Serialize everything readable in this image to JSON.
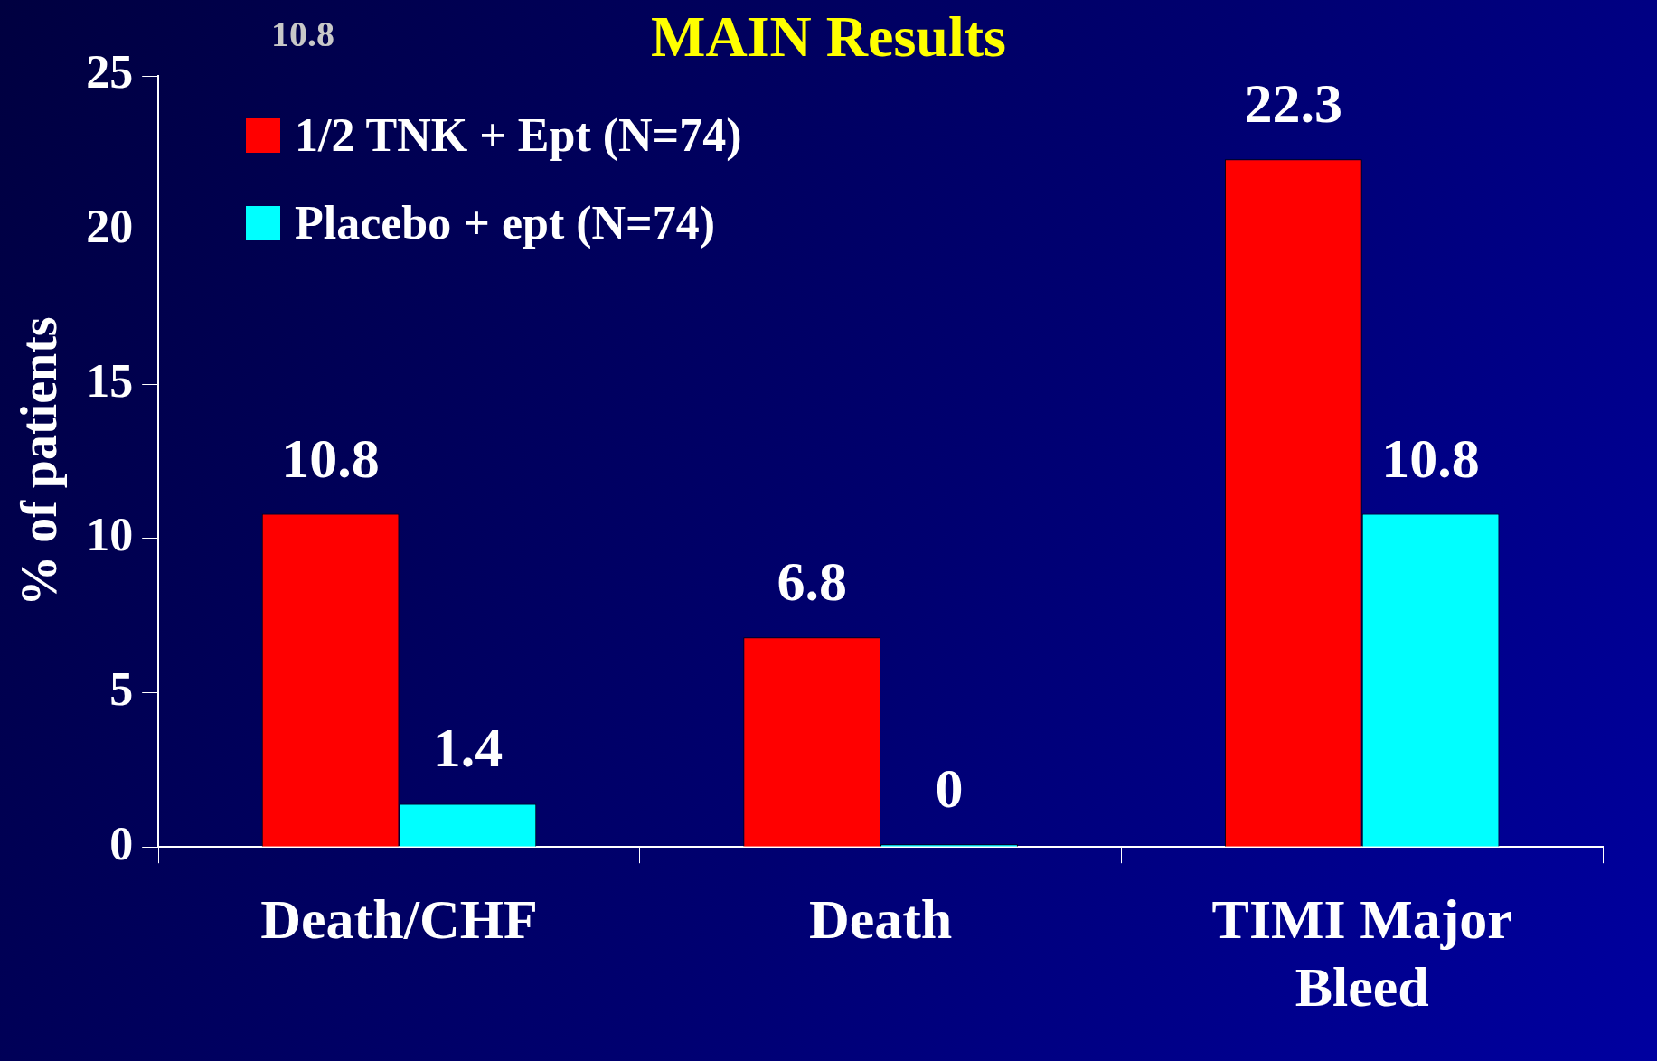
{
  "chart_data": {
    "type": "bar",
    "title": "MAIN Results",
    "ylabel": "% of patients",
    "categories": [
      "Death/CHF",
      "Death",
      "TIMI Major Bleed"
    ],
    "series": [
      {
        "name": "1/2 TNK + Ept (N=74)",
        "color": "#ff0000",
        "values": [
          10.8,
          6.8,
          22.3
        ]
      },
      {
        "name": "Placebo + ept (N=74)",
        "color": "#00ffff",
        "values": [
          1.4,
          0,
          10.8
        ]
      }
    ],
    "ylim": [
      0,
      25
    ],
    "yticks": [
      0,
      5,
      10,
      15,
      20,
      25
    ],
    "grid": false,
    "legend": "top left",
    "data_labels": true,
    "annotations": [
      "10.8"
    ]
  }
}
